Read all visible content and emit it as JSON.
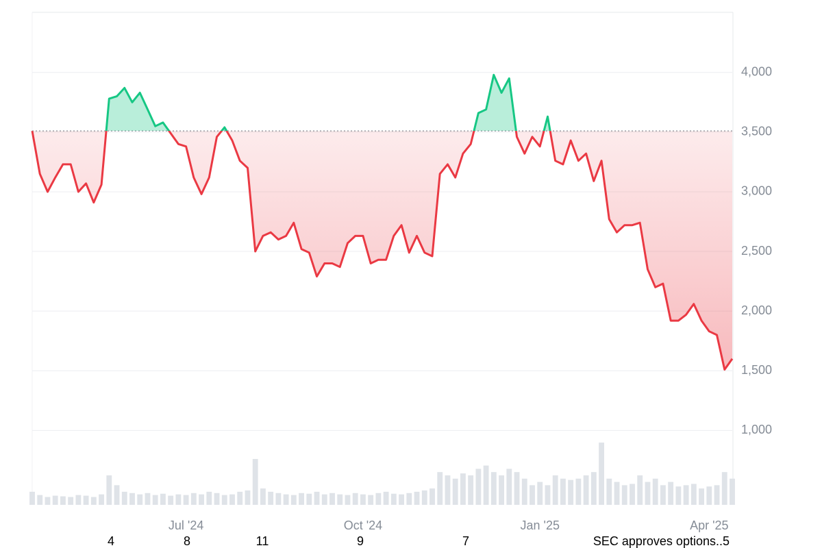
{
  "chart_data": {
    "type": "line",
    "categories": [
      null,
      null,
      null,
      null,
      null,
      null,
      null,
      null,
      null,
      null,
      null,
      null,
      null,
      null,
      null,
      null,
      null,
      null,
      null,
      null,
      "Jul '24",
      null,
      null,
      null,
      null,
      null,
      null,
      null,
      null,
      null,
      null,
      null,
      null,
      null,
      null,
      null,
      null,
      null,
      null,
      null,
      null,
      null,
      null,
      "Oct '24",
      null,
      null,
      null,
      null,
      null,
      null,
      null,
      null,
      null,
      null,
      null,
      null,
      null,
      null,
      null,
      null,
      null,
      null,
      null,
      null,
      null,
      null,
      "Jan '25",
      null,
      null,
      null,
      null,
      null,
      null,
      null,
      null,
      null,
      null,
      null,
      null,
      null,
      null,
      null,
      null,
      null,
      null,
      null,
      null,
      null,
      "Apr '25",
      null,
      null,
      null
    ],
    "series": [
      {
        "values": [
          3510,
          3150,
          3000,
          3120,
          3230,
          3230,
          3000,
          3070,
          2910,
          3060,
          3780,
          3800,
          3870,
          3750,
          3830,
          3690,
          3550,
          3580,
          3490,
          3400,
          3380,
          3120,
          2980,
          3120,
          3460,
          3540,
          3430,
          3260,
          3200,
          2500,
          2630,
          2660,
          2600,
          2630,
          2740,
          2520,
          2490,
          2290,
          2400,
          2400,
          2370,
          2570,
          2630,
          2630,
          2400,
          2430,
          2430,
          2630,
          2720,
          2490,
          2630,
          2490,
          2460,
          3150,
          3230,
          3120,
          3320,
          3400,
          3660,
          3690,
          3980,
          3830,
          3950,
          3460,
          3320,
          3460,
          3380,
          3630,
          3260,
          3230,
          3430,
          3260,
          3320,
          3090,
          3260,
          2770,
          2660,
          2720,
          2720,
          2740,
          2350,
          2200,
          2230,
          1920,
          1920,
          1970,
          2060,
          1920,
          1830,
          1800,
          1510,
          1600
        ],
        "up_color": "#16c784",
        "down_color": "#ea3943"
      },
      {
        "axis": "y2",
        "color": "#dfe3e8",
        "values": [
          20,
          15,
          12,
          14,
          13,
          12,
          15,
          14,
          12,
          16,
          45,
          30,
          20,
          18,
          16,
          18,
          15,
          17,
          14,
          16,
          15,
          18,
          16,
          20,
          18,
          15,
          16,
          20,
          22,
          70,
          25,
          20,
          18,
          16,
          15,
          18,
          17,
          20,
          16,
          18,
          16,
          15,
          18,
          16,
          15,
          18,
          20,
          17,
          16,
          18,
          20,
          22,
          25,
          50,
          45,
          40,
          48,
          45,
          55,
          60,
          50,
          45,
          55,
          50,
          40,
          30,
          35,
          30,
          45,
          40,
          38,
          40,
          45,
          50,
          95,
          40,
          35,
          30,
          32,
          45,
          35,
          40,
          30,
          35,
          28,
          30,
          32,
          25,
          28,
          30,
          50,
          40
        ]
      }
    ],
    "baseline": 3510,
    "ylim": [
      376,
      4504
    ],
    "yticks": [
      {
        "value": 1000,
        "label": "1,000"
      },
      {
        "value": 1500,
        "label": "1,500"
      },
      {
        "value": 2000,
        "label": "2,000"
      },
      {
        "value": 2500,
        "label": "2,500"
      },
      {
        "value": 3000,
        "label": "3,000"
      },
      {
        "value": 3500,
        "label": "3,500"
      },
      {
        "value": 4000,
        "label": "4,000"
      }
    ],
    "y2lim": [
      0,
      115
    ],
    "grid": true,
    "events": [
      "4",
      "8",
      "11",
      "9",
      "7",
      "SEC approves options..5"
    ]
  }
}
